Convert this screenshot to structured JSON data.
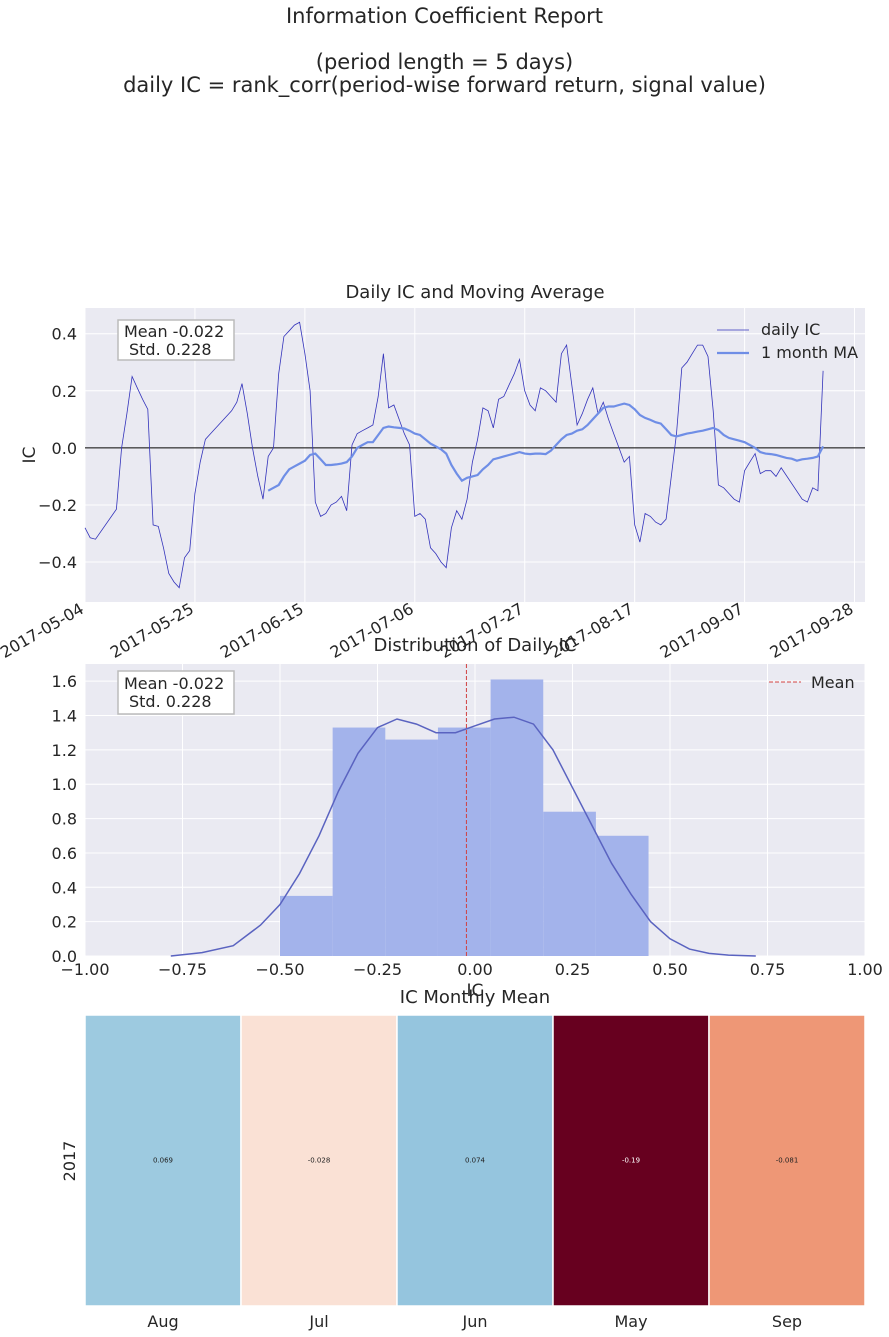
{
  "report": {
    "title_line1": "Information Coefficient Report",
    "title_line2": "(period length = 5 days)",
    "title_line3": "daily IC = rank_corr(period-wise forward return, signal value)"
  },
  "chart_data": [
    {
      "type": "line",
      "title": "Daily IC and Moving Average",
      "ylabel": "IC",
      "xlabel": "",
      "ylim": [
        -0.54,
        0.49
      ],
      "xlim": [
        "2017-05-04",
        "2017-09-30"
      ],
      "x_ticks": [
        "2017-05-04",
        "2017-05-25",
        "2017-06-15",
        "2017-07-06",
        "2017-07-27",
        "2017-08-17",
        "2017-09-07",
        "2017-09-28"
      ],
      "y_ticks": [
        -0.4,
        -0.2,
        0.0,
        0.2,
        0.4
      ],
      "y_tick_labels": [
        "−0.4",
        "−0.2",
        "0.0",
        "0.2",
        "0.4"
      ],
      "grid": true,
      "legend_position": "top-right",
      "zero_line": true,
      "annotation": {
        "mean_label": "Mean -0.022",
        "std_label": "Std. 0.228"
      },
      "series": [
        {
          "name": "daily IC",
          "color": "#3333bb",
          "dates": [
            "2017-05-04",
            "2017-05-05",
            "2017-05-06",
            "2017-05-10",
            "2017-05-11",
            "2017-05-12",
            "2017-05-13",
            "2017-05-14",
            "2017-05-15",
            "2017-05-16",
            "2017-05-17",
            "2017-05-18",
            "2017-05-19",
            "2017-05-20",
            "2017-05-21",
            "2017-05-22",
            "2017-05-23",
            "2017-05-24",
            "2017-05-25",
            "2017-05-26",
            "2017-05-27",
            "2017-05-28",
            "2017-06-01",
            "2017-06-02",
            "2017-06-03",
            "2017-06-04",
            "2017-06-05",
            "2017-06-06",
            "2017-06-07",
            "2017-06-08",
            "2017-06-09",
            "2017-06-10",
            "2017-06-11",
            "2017-06-12",
            "2017-06-13",
            "2017-06-14",
            "2017-06-15",
            "2017-06-16",
            "2017-06-17",
            "2017-06-18",
            "2017-06-19",
            "2017-06-20",
            "2017-06-21",
            "2017-06-22",
            "2017-06-23",
            "2017-06-24",
            "2017-06-25",
            "2017-06-26",
            "2017-06-27",
            "2017-06-28",
            "2017-06-29",
            "2017-06-30",
            "2017-07-01",
            "2017-07-02",
            "2017-07-03",
            "2017-07-04",
            "2017-07-05",
            "2017-07-06",
            "2017-07-07",
            "2017-07-08",
            "2017-07-09",
            "2017-07-10",
            "2017-07-11",
            "2017-07-12",
            "2017-07-13",
            "2017-07-14",
            "2017-07-15",
            "2017-07-16",
            "2017-07-17",
            "2017-07-18",
            "2017-07-19",
            "2017-07-20",
            "2017-07-21",
            "2017-07-22",
            "2017-07-23",
            "2017-07-24",
            "2017-07-25",
            "2017-07-26",
            "2017-07-27",
            "2017-07-28",
            "2017-07-29",
            "2017-07-30",
            "2017-07-31",
            "2017-08-01",
            "2017-08-02",
            "2017-08-03",
            "2017-08-04",
            "2017-08-05",
            "2017-08-06",
            "2017-08-07",
            "2017-08-08",
            "2017-08-09",
            "2017-08-10",
            "2017-08-11",
            "2017-08-12",
            "2017-08-13",
            "2017-08-14",
            "2017-08-15",
            "2017-08-16",
            "2017-08-17",
            "2017-08-18",
            "2017-08-19",
            "2017-08-20",
            "2017-08-21",
            "2017-08-22",
            "2017-08-23",
            "2017-08-24",
            "2017-08-25",
            "2017-08-26",
            "2017-08-27",
            "2017-08-28",
            "2017-08-29",
            "2017-08-30",
            "2017-08-31",
            "2017-09-01",
            "2017-09-02",
            "2017-09-03",
            "2017-09-04",
            "2017-09-05",
            "2017-09-06",
            "2017-09-07",
            "2017-09-08",
            "2017-09-09",
            "2017-09-10",
            "2017-09-11",
            "2017-09-12",
            "2017-09-13",
            "2017-09-14",
            "2017-09-18",
            "2017-09-19",
            "2017-09-20",
            "2017-09-21",
            "2017-09-22"
          ],
          "values": [
            -0.28,
            -0.315,
            -0.32,
            -0.215,
            0.0,
            0.12,
            0.25,
            0.21,
            0.17,
            0.135,
            -0.27,
            -0.275,
            -0.35,
            -0.44,
            -0.47,
            -0.49,
            -0.385,
            -0.36,
            -0.16,
            -0.05,
            0.03,
            0.05,
            0.13,
            0.16,
            0.225,
            0.12,
            0.0,
            -0.1,
            -0.18,
            -0.03,
            0.0,
            0.26,
            0.39,
            0.41,
            0.43,
            0.44,
            0.33,
            0.2,
            -0.19,
            -0.24,
            -0.23,
            -0.2,
            -0.19,
            -0.17,
            -0.22,
            0.01,
            0.05,
            0.06,
            0.07,
            0.08,
            0.18,
            0.33,
            0.14,
            0.15,
            0.1,
            0.05,
            0.01,
            -0.24,
            -0.23,
            -0.25,
            -0.35,
            -0.37,
            -0.4,
            -0.42,
            -0.28,
            -0.22,
            -0.25,
            -0.18,
            -0.05,
            0.03,
            0.14,
            0.13,
            0.07,
            0.17,
            0.18,
            0.22,
            0.26,
            0.31,
            0.2,
            0.15,
            0.13,
            0.21,
            0.2,
            0.18,
            0.16,
            0.33,
            0.36,
            0.22,
            0.08,
            0.12,
            0.17,
            0.21,
            0.12,
            0.16,
            0.1,
            0.05,
            0.0,
            -0.05,
            -0.03,
            -0.27,
            -0.33,
            -0.23,
            -0.24,
            -0.26,
            -0.27,
            -0.25,
            -0.1,
            0.05,
            0.28,
            0.3,
            0.33,
            0.36,
            0.36,
            0.32,
            0.13,
            -0.13,
            -0.14,
            -0.16,
            -0.18,
            -0.19,
            -0.08,
            -0.05,
            -0.02,
            -0.09,
            -0.08,
            -0.08,
            -0.1,
            -0.07,
            -0.18,
            -0.19,
            -0.14,
            -0.15,
            0.27
          ]
        },
        {
          "name": "1 month MA",
          "color": "#6f8ee6",
          "dates": [
            "2017-06-08",
            "2017-06-09",
            "2017-06-10",
            "2017-06-11",
            "2017-06-12",
            "2017-06-13",
            "2017-06-14",
            "2017-06-15",
            "2017-06-16",
            "2017-06-17",
            "2017-06-18",
            "2017-06-19",
            "2017-06-20",
            "2017-06-21",
            "2017-06-22",
            "2017-06-23",
            "2017-06-24",
            "2017-06-25",
            "2017-06-26",
            "2017-06-27",
            "2017-06-28",
            "2017-06-29",
            "2017-06-30",
            "2017-07-01",
            "2017-07-02",
            "2017-07-03",
            "2017-07-04",
            "2017-07-05",
            "2017-07-06",
            "2017-07-07",
            "2017-07-08",
            "2017-07-09",
            "2017-07-10",
            "2017-07-11",
            "2017-07-12",
            "2017-07-13",
            "2017-07-14",
            "2017-07-15",
            "2017-07-16",
            "2017-07-17",
            "2017-07-18",
            "2017-07-19",
            "2017-07-20",
            "2017-07-21",
            "2017-07-22",
            "2017-07-23",
            "2017-07-24",
            "2017-07-25",
            "2017-07-26",
            "2017-07-27",
            "2017-07-28",
            "2017-07-29",
            "2017-07-30",
            "2017-07-31",
            "2017-08-01",
            "2017-08-02",
            "2017-08-03",
            "2017-08-04",
            "2017-08-05",
            "2017-08-06",
            "2017-08-07",
            "2017-08-08",
            "2017-08-09",
            "2017-08-10",
            "2017-08-11",
            "2017-08-12",
            "2017-08-13",
            "2017-08-14",
            "2017-08-15",
            "2017-08-16",
            "2017-08-17",
            "2017-08-18",
            "2017-08-19",
            "2017-08-20",
            "2017-08-21",
            "2017-08-22",
            "2017-08-23",
            "2017-08-24",
            "2017-08-25",
            "2017-08-26",
            "2017-08-27",
            "2017-08-28",
            "2017-08-29",
            "2017-08-30",
            "2017-08-31",
            "2017-09-01",
            "2017-09-02",
            "2017-09-03",
            "2017-09-04",
            "2017-09-05",
            "2017-09-06",
            "2017-09-07",
            "2017-09-08",
            "2017-09-09",
            "2017-09-10",
            "2017-09-11",
            "2017-09-12",
            "2017-09-13",
            "2017-09-14",
            "2017-09-15",
            "2017-09-16",
            "2017-09-17",
            "2017-09-18",
            "2017-09-19",
            "2017-09-20",
            "2017-09-21",
            "2017-09-22"
          ],
          "values": [
            -0.15,
            -0.14,
            -0.13,
            -0.1,
            -0.075,
            -0.065,
            -0.055,
            -0.045,
            -0.025,
            -0.02,
            -0.04,
            -0.06,
            -0.06,
            -0.058,
            -0.055,
            -0.05,
            -0.03,
            0.0,
            0.01,
            0.02,
            0.02,
            0.045,
            0.07,
            0.075,
            0.072,
            0.07,
            0.068,
            0.06,
            0.05,
            0.045,
            0.03,
            0.015,
            0.005,
            -0.005,
            -0.02,
            -0.06,
            -0.09,
            -0.115,
            -0.105,
            -0.1,
            -0.095,
            -0.075,
            -0.06,
            -0.04,
            -0.035,
            -0.03,
            -0.025,
            -0.02,
            -0.015,
            -0.02,
            -0.022,
            -0.02,
            -0.02,
            -0.022,
            -0.01,
            0.01,
            0.03,
            0.045,
            0.05,
            0.06,
            0.065,
            0.08,
            0.1,
            0.12,
            0.14,
            0.145,
            0.145,
            0.15,
            0.155,
            0.15,
            0.135,
            0.115,
            0.105,
            0.098,
            0.09,
            0.085,
            0.065,
            0.045,
            0.04,
            0.045,
            0.05,
            0.053,
            0.057,
            0.06,
            0.065,
            0.07,
            0.062,
            0.045,
            0.035,
            0.03,
            0.025,
            0.02,
            0.01,
            0.0,
            -0.015,
            -0.02,
            -0.022,
            -0.025,
            -0.03,
            -0.035,
            -0.038,
            -0.045,
            -0.04,
            -0.038,
            -0.035,
            -0.03,
            0.005
          ]
        }
      ]
    },
    {
      "type": "bar",
      "title": "Distribution of Daily IC",
      "xlabel": "IC",
      "ylabel": "",
      "xlim": [
        -1.0,
        1.0
      ],
      "ylim": [
        0,
        1.7
      ],
      "x_ticks": [
        -1.0,
        -0.75,
        -0.5,
        -0.25,
        0.0,
        0.25,
        0.5,
        0.75,
        1.0
      ],
      "x_tick_labels": [
        "−1.00",
        "−0.75",
        "−0.50",
        "−0.25",
        "0.00",
        "0.25",
        "0.50",
        "0.75",
        "1.00"
      ],
      "y_ticks": [
        0.0,
        0.2,
        0.4,
        0.6,
        0.8,
        1.0,
        1.2,
        1.4,
        1.6
      ],
      "y_tick_labels": [
        "0.0",
        "0.2",
        "0.4",
        "0.6",
        "0.8",
        "1.0",
        "1.2",
        "1.4",
        "1.6"
      ],
      "grid": true,
      "legend_position": "top-right",
      "bar_color": "#a3b3eb",
      "kde_color": "#5a63c0",
      "mean_line_color": "#d04040",
      "mean_value": -0.022,
      "mean_legend_label": "Mean",
      "annotation": {
        "mean_label": "Mean -0.022",
        "std_label": "Std. 0.228"
      },
      "bins": [
        {
          "x0": -0.5,
          "x1": -0.365,
          "density": 0.35
        },
        {
          "x0": -0.365,
          "x1": -0.23,
          "density": 1.33
        },
        {
          "x0": -0.23,
          "x1": -0.095,
          "density": 1.26
        },
        {
          "x0": -0.095,
          "x1": 0.04,
          "density": 1.33
        },
        {
          "x0": 0.04,
          "x1": 0.175,
          "density": 1.61
        },
        {
          "x0": 0.175,
          "x1": 0.31,
          "density": 0.84
        },
        {
          "x0": 0.31,
          "x1": 0.445,
          "density": 0.7
        }
      ],
      "kde": {
        "x": [
          -0.78,
          -0.7,
          -0.62,
          -0.55,
          -0.5,
          -0.45,
          -0.4,
          -0.35,
          -0.3,
          -0.25,
          -0.2,
          -0.15,
          -0.1,
          -0.05,
          0.0,
          0.05,
          0.1,
          0.15,
          0.2,
          0.25,
          0.3,
          0.35,
          0.4,
          0.45,
          0.5,
          0.55,
          0.6,
          0.65,
          0.72
        ],
        "y": [
          0.0,
          0.02,
          0.06,
          0.18,
          0.3,
          0.48,
          0.7,
          0.96,
          1.18,
          1.33,
          1.38,
          1.35,
          1.3,
          1.3,
          1.34,
          1.38,
          1.39,
          1.35,
          1.2,
          0.98,
          0.76,
          0.54,
          0.36,
          0.2,
          0.1,
          0.04,
          0.015,
          0.005,
          0.0
        ]
      }
    },
    {
      "type": "heatmap",
      "title": "IC Monthly Mean",
      "ylabel": "2017",
      "categories": [
        "Aug",
        "Jul",
        "Jun",
        "May",
        "Sep"
      ],
      "values": [
        0.069,
        -0.028,
        0.074,
        -0.19,
        -0.081
      ],
      "value_labels": [
        "0.069",
        "-0.028",
        "0.074",
        "-0.19",
        "-0.081"
      ],
      "colors": [
        "#9dcae0",
        "#fae1d5",
        "#95c5de",
        "#67001f",
        "#ee9776"
      ],
      "label_colors": [
        "#222222",
        "#222222",
        "#222222",
        "#ffffff",
        "#222222"
      ]
    }
  ]
}
